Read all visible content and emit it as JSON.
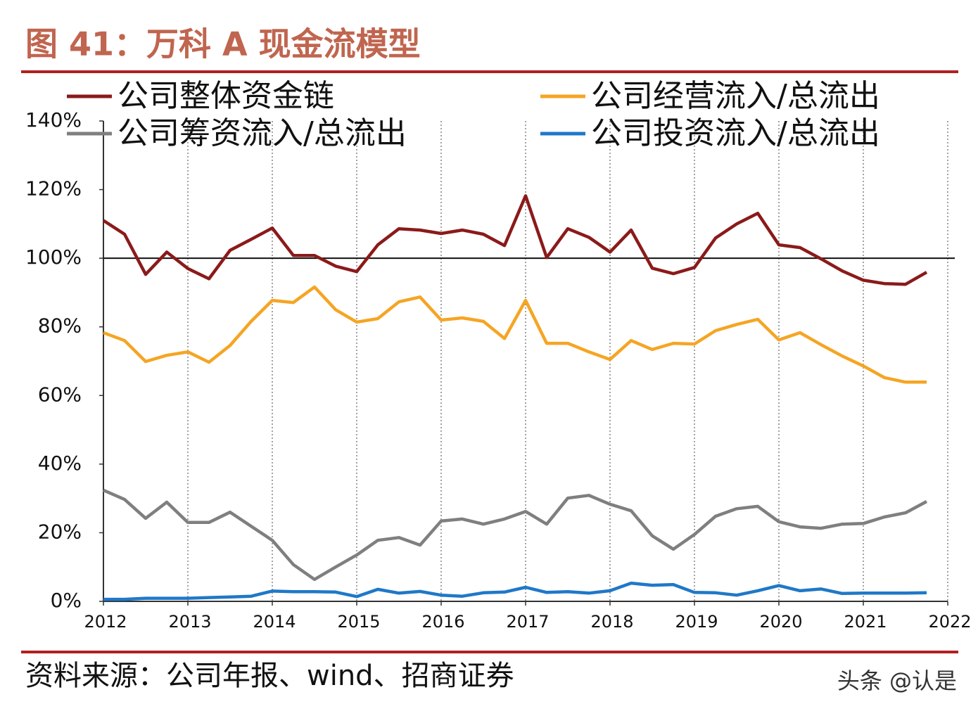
{
  "chart_data": {
    "type": "line",
    "title": "图 41：万科 A 现金流模型",
    "x": [
      2012,
      2012.25,
      2012.5,
      2012.75,
      2013,
      2013.25,
      2013.5,
      2013.75,
      2014,
      2014.25,
      2014.5,
      2014.75,
      2015,
      2015.25,
      2015.5,
      2015.75,
      2016,
      2016.25,
      2016.5,
      2016.75,
      2017,
      2017.25,
      2017.5,
      2017.75,
      2018,
      2018.25,
      2018.5,
      2018.75,
      2019,
      2019.25,
      2019.5,
      2019.75,
      2020,
      2020.25,
      2020.5,
      2020.75,
      2021,
      2021.25,
      2021.5,
      2021.75
    ],
    "series": [
      {
        "name": "公司整体资金链",
        "color": "#8b1a1a",
        "values": [
          111,
          107,
          95.3,
          101.8,
          97,
          94,
          102.3,
          105.5,
          108.8,
          100.8,
          100.8,
          97.7,
          96.1,
          103.9,
          108.6,
          108.2,
          107.2,
          108.2,
          107,
          103.7,
          118.2,
          100.2,
          108.6,
          106.1,
          101.8,
          108.2,
          97.1,
          95.5,
          97.3,
          105.9,
          110,
          113.1,
          103.9,
          103.1,
          99.8,
          96.3,
          93.6,
          92.6,
          92.4,
          95.9
        ]
      },
      {
        "name": "公司经营流入/总流出",
        "color": "#f5a524",
        "values": [
          78.3,
          76,
          69.9,
          71.7,
          72.7,
          69.7,
          74.6,
          81.6,
          87.7,
          87.1,
          91.6,
          85,
          81.4,
          82.4,
          87.3,
          88.7,
          82,
          82.6,
          81.6,
          76.6,
          87.7,
          75.2,
          75.2,
          72.7,
          70.5,
          76,
          73.4,
          75.2,
          75,
          78.9,
          80.7,
          82.2,
          76.2,
          78.3,
          74.8,
          71.5,
          68.6,
          65.2,
          63.9,
          63.9
        ]
      },
      {
        "name": "公司筹资流入/总流出",
        "color": "#7f7f7f",
        "values": [
          32.4,
          29.7,
          24.2,
          28.9,
          23,
          23,
          26,
          21.9,
          17.8,
          10.7,
          6.4,
          10,
          13.5,
          17.8,
          18.6,
          16.4,
          23.4,
          24,
          22.5,
          24,
          26.2,
          22.5,
          30.1,
          30.9,
          28.3,
          26.4,
          19.1,
          15.2,
          19.5,
          24.8,
          27,
          27.7,
          23.2,
          21.7,
          21.3,
          22.5,
          22.7,
          24.6,
          25.8,
          29.1
        ]
      },
      {
        "name": "公司投资流入/总流出",
        "color": "#1f78c8",
        "values": [
          0.6,
          0.6,
          0.9,
          0.9,
          0.9,
          1.1,
          1.3,
          1.5,
          3,
          2.8,
          2.8,
          2.7,
          1.4,
          3.5,
          2.4,
          2.9,
          1.8,
          1.5,
          2.5,
          2.7,
          4.1,
          2.6,
          2.8,
          2.4,
          3.1,
          5.3,
          4.7,
          4.9,
          2.6,
          2.5,
          1.8,
          3.1,
          4.6,
          3.1,
          3.6,
          2.3,
          2.4,
          2.4,
          2.4,
          2.5
        ]
      }
    ],
    "xlim": [
      2012,
      2022
    ],
    "xticks": [
      2012,
      2013,
      2014,
      2015,
      2016,
      2017,
      2018,
      2019,
      2020,
      2021,
      2022
    ],
    "ylim": [
      0,
      140
    ],
    "yticks": [
      {
        "value": 0,
        "label": "0%"
      },
      {
        "value": 20,
        "label": "20%"
      },
      {
        "value": 40,
        "label": "40%"
      },
      {
        "value": 60,
        "label": "60%"
      },
      {
        "value": 80,
        "label": "80%"
      },
      {
        "value": 100,
        "label": "100%"
      },
      {
        "value": 120,
        "label": "120%"
      },
      {
        "value": 140,
        "label": "140%"
      }
    ],
    "reference_line": 100,
    "grid": true
  },
  "source": "资料来源：公司年报、wind、招商证券",
  "watermark": "头条 @认是"
}
